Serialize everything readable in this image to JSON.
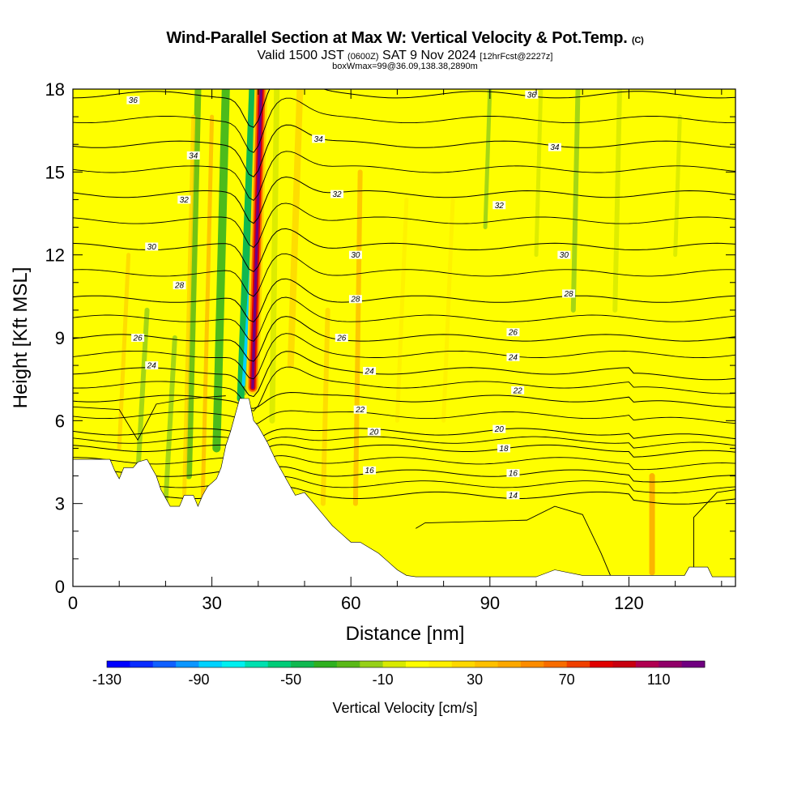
{
  "title": {
    "main": "Wind-Parallel Section at Max W: Vertical Velocity & Pot.Temp.",
    "copyright": "(C)",
    "valid_prefix": "Valid 1500 JST",
    "utc": "(0600Z)",
    "valid_suffix": "SAT 9 Nov 2024",
    "forecast": "[12hrFcst@2227z]",
    "box_info": "boxWmax=99@36.09,138.38,2890m"
  },
  "chart_data": {
    "type": "heatmap",
    "title": "Wind-Parallel Section at Max W: Vertical Velocity & Pot.Temp.",
    "xlabel": "Distance [nm]",
    "ylabel": "Height [Kft MSL]",
    "xlim": [
      0,
      143
    ],
    "ylim": [
      0,
      18
    ],
    "xticks": [
      0,
      30,
      60,
      90,
      120
    ],
    "yticks": [
      0,
      3,
      6,
      9,
      12,
      15,
      18
    ],
    "colorbar": {
      "label": "Vertical Velocity [cm/s]",
      "tick_labels": [
        -130,
        -90,
        -50,
        -10,
        30,
        70,
        110
      ],
      "levels": [
        -130,
        -120,
        -110,
        -100,
        -90,
        -80,
        -70,
        -60,
        -50,
        -40,
        -30,
        -20,
        -10,
        0,
        10,
        20,
        30,
        40,
        50,
        60,
        70,
        80,
        90,
        100,
        110,
        120
      ],
      "colors": [
        "#0000ff",
        "#0a2cff",
        "#1060ff",
        "#0c96ff",
        "#00d2ff",
        "#00f0f0",
        "#00e0b0",
        "#00cc78",
        "#10b850",
        "#2fb020",
        "#5ab818",
        "#96d018",
        "#d8ea00",
        "#fefe00",
        "#fef000",
        "#fed800",
        "#fec000",
        "#fca800",
        "#fc8c00",
        "#f86c00",
        "#f04000",
        "#e00000",
        "#c80010",
        "#b00050",
        "#900068",
        "#700080"
      ]
    },
    "theta_contours": [
      {
        "label": "14",
        "height": 3.3
      },
      {
        "label": "16",
        "height": 4.1
      },
      {
        "label": "18",
        "height": 5.0
      },
      {
        "label": "20",
        "height": 5.6
      },
      {
        "label": "22",
        "height": 6.8
      },
      {
        "label": "24",
        "height": 7.8
      },
      {
        "label": "26",
        "height": 9.0
      },
      {
        "label": "28",
        "height": 10.4
      },
      {
        "label": "30",
        "height": 12.3
      },
      {
        "label": "32",
        "height": 14.2
      },
      {
        "label": "34",
        "height": 16.0
      },
      {
        "label": "36",
        "height": 17.8
      }
    ],
    "updraft_core": {
      "distance": 40,
      "max_w": 99
    }
  }
}
